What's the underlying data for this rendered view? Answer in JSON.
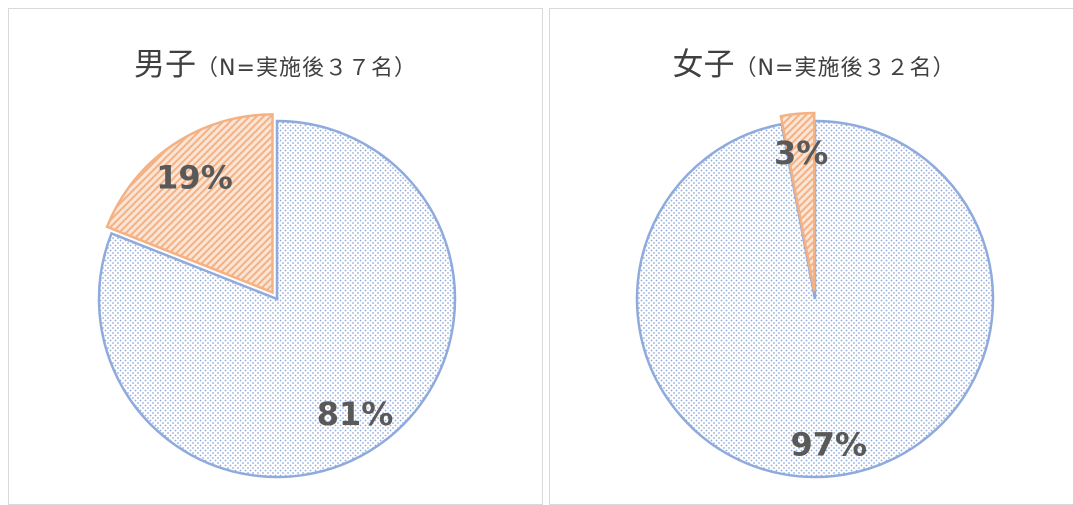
{
  "chart_data": [
    {
      "type": "pie",
      "title": "男子",
      "subtitle": "（N=実施後３７名）",
      "categories": [
        "",
        ""
      ],
      "values": [
        81,
        19
      ],
      "data_labels": [
        "81%",
        "19%"
      ],
      "colors": [
        "#8faadc",
        "#f4b183"
      ],
      "patterns": [
        "dots",
        "diagonal-hatch"
      ]
    },
    {
      "type": "pie",
      "title": "女子",
      "subtitle": "（N=実施後３２名）",
      "categories": [
        "",
        ""
      ],
      "values": [
        97,
        3
      ],
      "data_labels": [
        "97%",
        "3%"
      ],
      "colors": [
        "#8faadc",
        "#f4b183"
      ],
      "patterns": [
        "dots",
        "diagonal-hatch"
      ]
    }
  ]
}
